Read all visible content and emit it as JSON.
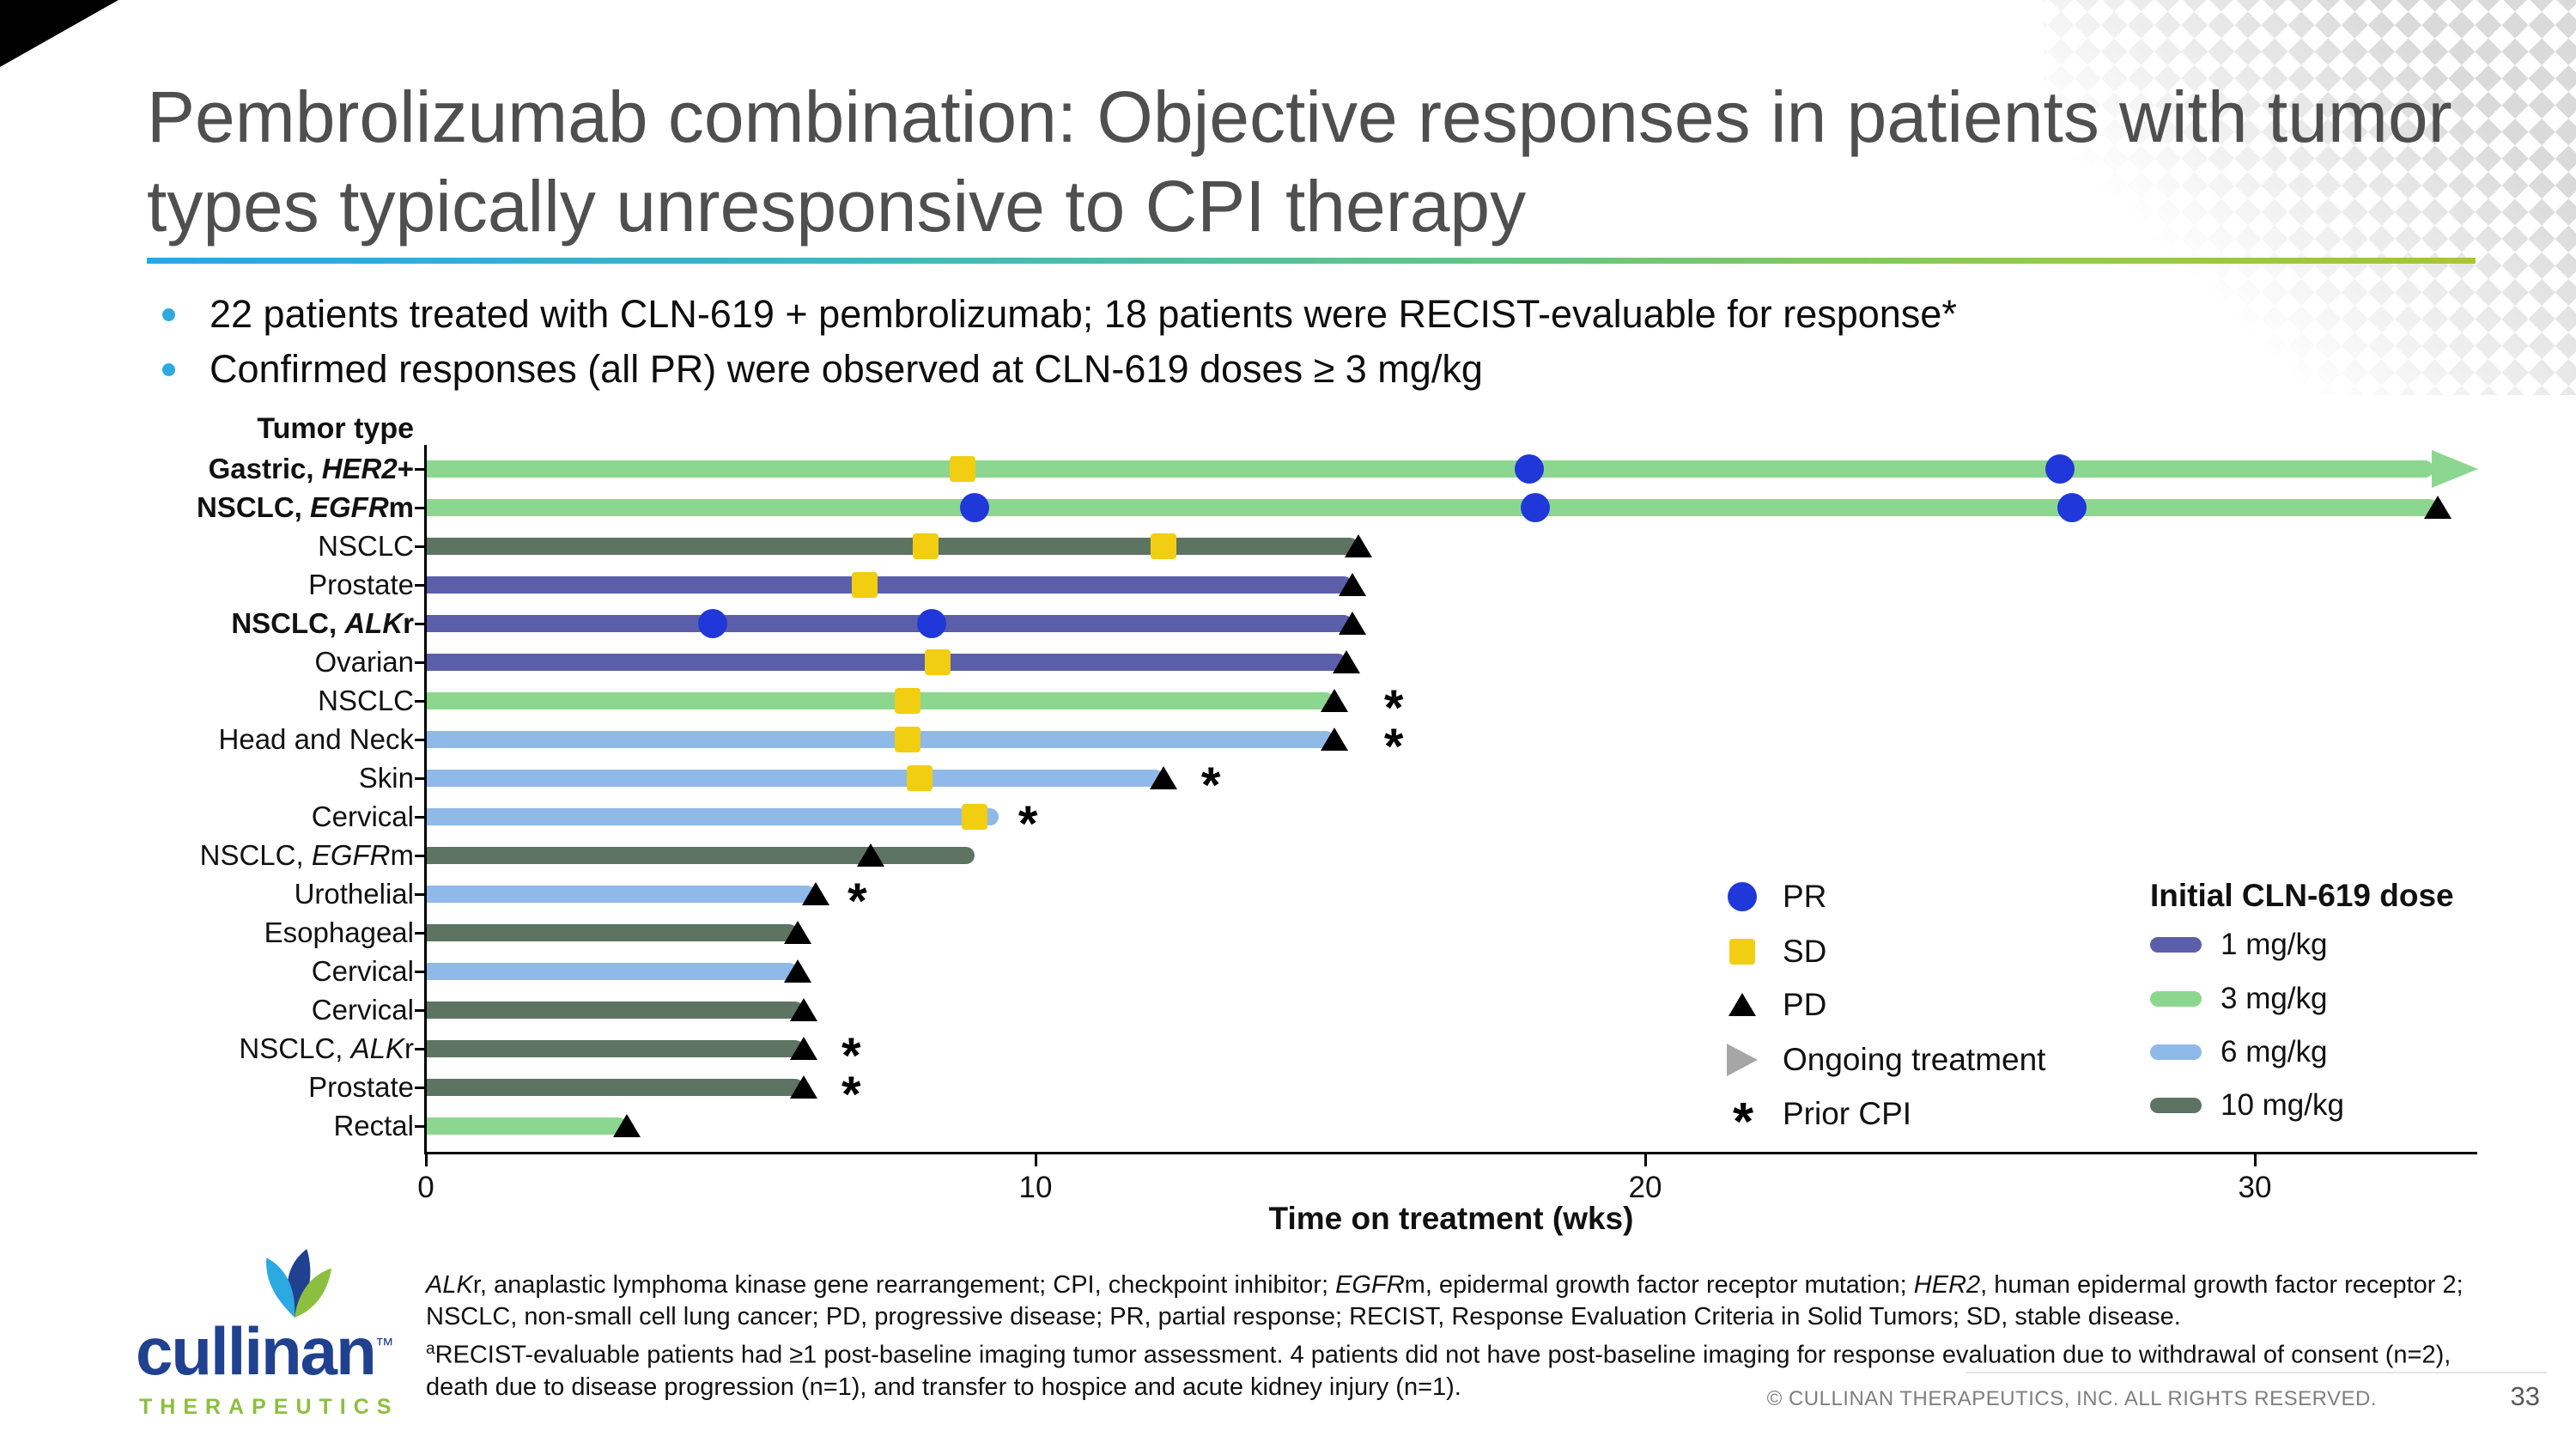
{
  "slide": {
    "title": "Pembrolizumab combination: Objective responses in patients with tumor types typically unresponsive to CPI therapy",
    "bullets": [
      "22 patients treated with CLN-619 + pembrolizumab; 18 patients were RECIST-evaluable for response*",
      "Confirmed responses (all PR) were observed at CLN-619 doses ≥ 3 mg/kg"
    ],
    "copyright": "© CULLINAN THERAPEUTICS, INC. ALL RIGHTS RESERVED.",
    "page_number": "33",
    "logo": {
      "wordmark": "cullinan",
      "trademark": "™",
      "subtext": "THERAPEUTICS"
    },
    "colors": {
      "accent_blue": "#2FA9E0",
      "brand_navy": "#20418F",
      "brand_green": "#8CBF3F",
      "title_gray": "#4F4F4F"
    }
  },
  "chart_data": {
    "type": "bar",
    "subtype": "swimmer",
    "title": "",
    "xlabel": "Time on treatment (wks)",
    "ylabel": "Tumor type",
    "xlim": [
      0,
      34
    ],
    "xticks": [
      0,
      10,
      20,
      30
    ],
    "x_unit": "weeks",
    "dose_colors": {
      "1 mg/kg": "#5B5FA9",
      "3 mg/kg": "#8CD78F",
      "6 mg/kg": "#8FB9E9",
      "10 mg/kg": "#5E7462"
    },
    "marker_colors": {
      "PR": "#2038D9",
      "SD": "#F2CE12",
      "PD": "#000000",
      "ongoing": "#A6A6A6"
    },
    "rows": [
      {
        "label": "Gastric, <i>HER2</i>+",
        "bold": true,
        "dose": "3 mg/kg",
        "end_wks": 33.6,
        "ongoing": true,
        "markers": [
          {
            "type": "SD",
            "x": 8.8
          },
          {
            "type": "PR",
            "x": 18.1
          },
          {
            "type": "PR",
            "x": 26.8
          }
        ]
      },
      {
        "label": "NSCLC, <i>EGFR</i>m",
        "bold": true,
        "dose": "3 mg/kg",
        "end_wks": 33.0,
        "ongoing": false,
        "markers": [
          {
            "type": "PR",
            "x": 9.0
          },
          {
            "type": "PR",
            "x": 18.2
          },
          {
            "type": "PR",
            "x": 27.0
          },
          {
            "type": "PD",
            "x": 33.0
          }
        ]
      },
      {
        "label": "NSCLC",
        "bold": false,
        "dose": "10 mg/kg",
        "end_wks": 15.3,
        "ongoing": false,
        "markers": [
          {
            "type": "SD",
            "x": 8.2
          },
          {
            "type": "SD",
            "x": 12.1
          },
          {
            "type": "PD",
            "x": 15.3
          }
        ]
      },
      {
        "label": "Prostate",
        "bold": false,
        "dose": "1 mg/kg",
        "end_wks": 15.2,
        "ongoing": false,
        "markers": [
          {
            "type": "SD",
            "x": 7.2
          },
          {
            "type": "PD",
            "x": 15.2
          }
        ]
      },
      {
        "label": "NSCLC, <i>ALK</i>r",
        "bold": true,
        "dose": "1 mg/kg",
        "end_wks": 15.2,
        "ongoing": false,
        "markers": [
          {
            "type": "PR",
            "x": 4.7
          },
          {
            "type": "PR",
            "x": 8.3
          },
          {
            "type": "PD",
            "x": 15.2
          }
        ]
      },
      {
        "label": "Ovarian",
        "bold": false,
        "dose": "1 mg/kg",
        "end_wks": 15.1,
        "ongoing": false,
        "markers": [
          {
            "type": "SD",
            "x": 8.4
          },
          {
            "type": "PD",
            "x": 15.1
          }
        ]
      },
      {
        "label": "NSCLC",
        "bold": false,
        "dose": "3 mg/kg",
        "end_wks": 14.9,
        "ongoing": false,
        "markers": [
          {
            "type": "SD",
            "x": 7.9
          },
          {
            "type": "PD",
            "x": 14.9
          },
          {
            "type": "CPI",
            "x": 15.9
          }
        ]
      },
      {
        "label": "Head and Neck",
        "bold": false,
        "dose": "6 mg/kg",
        "end_wks": 14.9,
        "ongoing": false,
        "markers": [
          {
            "type": "SD",
            "x": 7.9
          },
          {
            "type": "PD",
            "x": 14.9
          },
          {
            "type": "CPI",
            "x": 15.9
          }
        ]
      },
      {
        "label": "Skin",
        "bold": false,
        "dose": "6 mg/kg",
        "end_wks": 12.1,
        "ongoing": false,
        "markers": [
          {
            "type": "SD",
            "x": 8.1
          },
          {
            "type": "PD",
            "x": 12.1
          },
          {
            "type": "CPI",
            "x": 12.9
          }
        ]
      },
      {
        "label": "Cervical",
        "bold": false,
        "dose": "6 mg/kg",
        "end_wks": 9.4,
        "ongoing": false,
        "markers": [
          {
            "type": "SD",
            "x": 9.0
          },
          {
            "type": "CPI",
            "x": 9.9
          }
        ]
      },
      {
        "label": "NSCLC, <i>EGFR</i>m",
        "bold": false,
        "dose": "10 mg/kg",
        "end_wks": 9.0,
        "ongoing": false,
        "markers": [
          {
            "type": "PD",
            "x": 7.3
          }
        ]
      },
      {
        "label": "Urothelial",
        "bold": false,
        "dose": "6 mg/kg",
        "end_wks": 6.4,
        "ongoing": false,
        "markers": [
          {
            "type": "PD",
            "x": 6.4
          },
          {
            "type": "CPI",
            "x": 7.1
          }
        ]
      },
      {
        "label": "Esophageal",
        "bold": false,
        "dose": "10 mg/kg",
        "end_wks": 6.1,
        "ongoing": false,
        "markers": [
          {
            "type": "PD",
            "x": 6.1
          }
        ]
      },
      {
        "label": "Cervical",
        "bold": false,
        "dose": "6 mg/kg",
        "end_wks": 6.1,
        "ongoing": false,
        "markers": [
          {
            "type": "PD",
            "x": 6.1
          }
        ]
      },
      {
        "label": "Cervical",
        "bold": false,
        "dose": "10 mg/kg",
        "end_wks": 6.2,
        "ongoing": false,
        "markers": [
          {
            "type": "PD",
            "x": 6.2
          }
        ]
      },
      {
        "label": "NSCLC, <i>ALK</i>r",
        "bold": false,
        "dose": "10 mg/kg",
        "end_wks": 6.2,
        "ongoing": false,
        "markers": [
          {
            "type": "PD",
            "x": 6.2
          },
          {
            "type": "CPI",
            "x": 7.0
          }
        ]
      },
      {
        "label": "Prostate",
        "bold": false,
        "dose": "10 mg/kg",
        "end_wks": 6.2,
        "ongoing": false,
        "markers": [
          {
            "type": "PD",
            "x": 6.2
          },
          {
            "type": "CPI",
            "x": 7.0
          }
        ]
      },
      {
        "label": "Rectal",
        "bold": false,
        "dose": "3 mg/kg",
        "end_wks": 3.3,
        "ongoing": false,
        "markers": [
          {
            "type": "PD",
            "x": 3.3
          }
        ]
      }
    ],
    "legend": {
      "markers": [
        {
          "key": "PR",
          "label": "PR"
        },
        {
          "key": "SD",
          "label": "SD"
        },
        {
          "key": "PD",
          "label": "PD"
        },
        {
          "key": "ongoing",
          "label": "Ongoing treatment"
        },
        {
          "key": "prior_cpi",
          "label": "Prior CPI"
        }
      ],
      "dose_title": "Initial CLN-619 dose",
      "doses": [
        "1 mg/kg",
        "3 mg/kg",
        "6 mg/kg",
        "10 mg/kg"
      ]
    }
  },
  "footnotes": {
    "lines": [
      "<i>ALK</i>r, anaplastic lymphoma kinase gene rearrangement; CPI, checkpoint inhibitor; <i>EGFR</i>m, epidermal growth factor receptor mutation; <i>HER2</i>, human epidermal growth factor receptor 2;",
      "NSCLC, non-small cell lung cancer; PD, progressive disease; PR, partial response; RECIST, Response Evaluation Criteria in Solid Tumors; SD, stable disease.",
      "<sup>a</sup>RECIST-evaluable patients had ≥1 post-baseline imaging tumor assessment. 4 patients did not have post-baseline imaging for response evaluation due to withdrawal of consent (n=2),",
      "death due to disease progression (n=1), and transfer to hospice and acute kidney injury (n=1)."
    ]
  }
}
